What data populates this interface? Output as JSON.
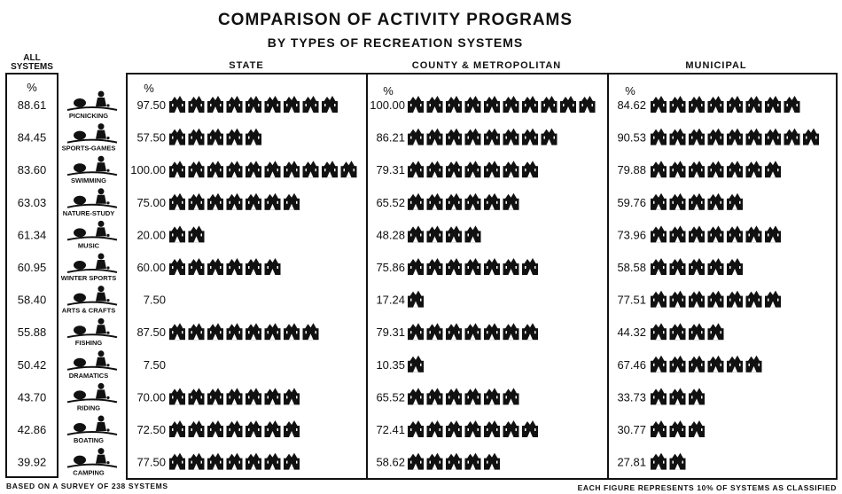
{
  "chart_data": {
    "type": "bar",
    "title": "COMPARISON OF ACTIVITY PROGRAMS",
    "subtitle": "BY TYPES OF RECREATION SYSTEMS",
    "all_systems_header": "ALL SYSTEMS",
    "percent_symbol": "%",
    "categories": [
      "PICNICKING",
      "SPORTS-GAMES",
      "SWIMMING",
      "NATURE-STUDY",
      "MUSIC",
      "WINTER SPORTS",
      "ARTS & CRAFTS",
      "FISHING",
      "DRAMATICS",
      "RIDING",
      "BOATING",
      "CAMPING"
    ],
    "all_systems": [
      "88.61",
      "84.45",
      "83.60",
      "63.03",
      "61.34",
      "60.95",
      "58.40",
      "55.88",
      "50.42",
      "43.70",
      "42.86",
      "39.92"
    ],
    "series": [
      {
        "name": "STATE",
        "values": [
          "97.50",
          "57.50",
          "100.00",
          "75.00",
          "20.00",
          "60.00",
          "7.50",
          "87.50",
          "7.50",
          "70.00",
          "72.50",
          "77.50"
        ]
      },
      {
        "name": "COUNTY & METROPOLITAN",
        "values": [
          "100.00",
          "86.21",
          "79.31",
          "65.52",
          "48.28",
          "75.86",
          "17.24",
          "79.31",
          "10.35",
          "65.52",
          "72.41",
          "58.62"
        ]
      },
      {
        "name": "MUNICIPAL",
        "values": [
          "84.62",
          "90.53",
          "79.88",
          "59.76",
          "73.96",
          "58.58",
          "77.51",
          "44.32",
          "67.46",
          "33.73",
          "30.77",
          "27.81"
        ]
      }
    ],
    "unit_per_figure": 10,
    "footer_left": "BASED ON A SURVEY OF 238 SYSTEMS",
    "footer_right": "EACH FIGURE REPRESENTS 10% OF SYSTEMS AS CLASSIFIED",
    "ink_color": "#111111",
    "paper_color": "#ffffff"
  }
}
